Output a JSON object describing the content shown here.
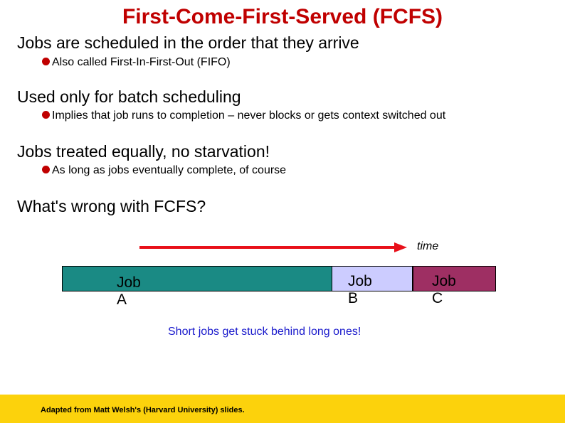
{
  "title": "First-Come-First-Served (FCFS)",
  "sections": [
    {
      "heading": "Jobs are scheduled in the order that they arrive",
      "sub": "Also called First-In-First-Out (FIFO)"
    },
    {
      "heading": "Used only for batch scheduling",
      "sub": "Implies that job runs to completion – never blocks or gets context switched out"
    },
    {
      "heading": "Jobs treated equally, no starvation!",
      "sub": "As long as jobs eventually complete, of course"
    },
    {
      "heading": "What's wrong with FCFS?",
      "sub": ""
    }
  ],
  "diagram": {
    "time_label": "time",
    "arrow_color": "#e8101a",
    "jobs": [
      {
        "line1": "Job",
        "line2": "A",
        "color": "#1a8a84"
      },
      {
        "line1": "Job",
        "line2": "B",
        "color": "#ccccff"
      },
      {
        "line1": "Job",
        "line2": "C",
        "color": "#9e2f63"
      }
    ],
    "caption": "Short jobs get stuck behind long ones!",
    "caption_color": "#1a1acc"
  },
  "footer": {
    "text": "Adapted from Matt Welsh's (Harvard University) slides.",
    "band_color": "#fcd20c"
  },
  "colors": {
    "title": "#c00000",
    "bullet": "#c00000"
  }
}
